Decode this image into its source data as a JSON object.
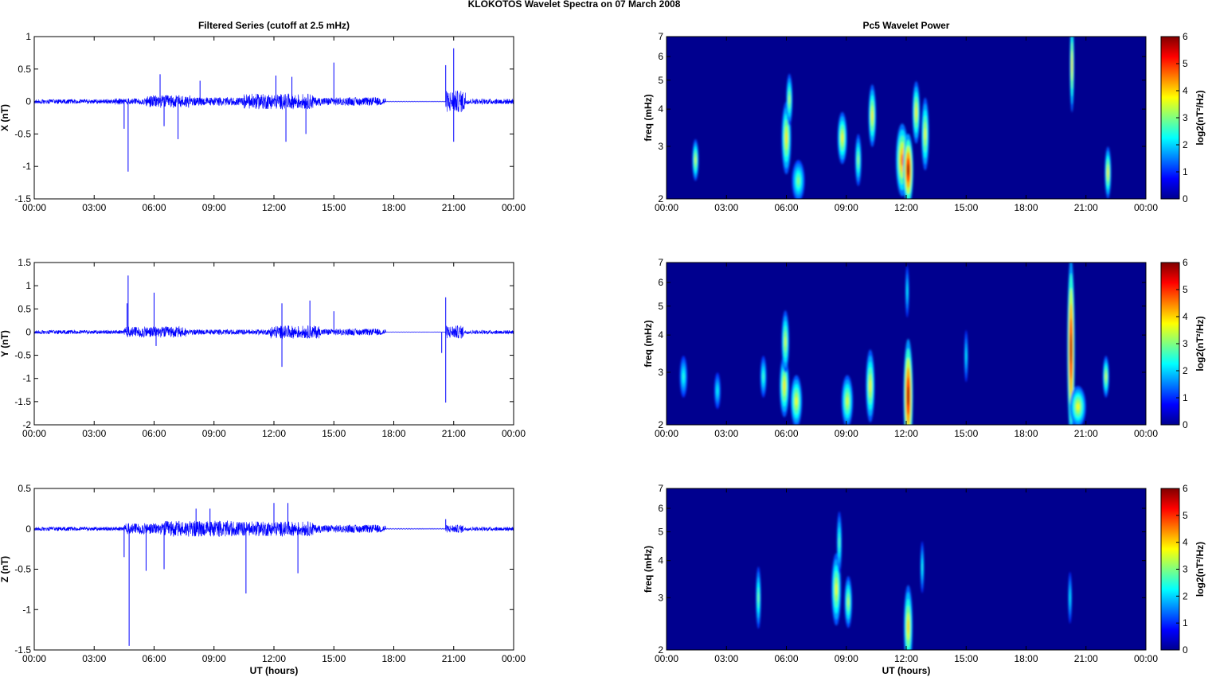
{
  "figure": {
    "suptitle": "KLOKOTOS Wavelet Spectra on 07 March     2008"
  },
  "colors": {
    "trace": "#0000ff",
    "axes": "#000000",
    "spectrum_background": "#00008f"
  },
  "chart_data": [
    {
      "type": "line",
      "panel": "x-series",
      "title": "Filtered Series (cutoff at 2.5 mHz)",
      "xlabel": "",
      "ylabel": "X (nT)",
      "xlim": [
        "00:00",
        "24:00"
      ],
      "ylim": [
        -1.5,
        1
      ],
      "x_ticks": [
        "00:00",
        "03:00",
        "06:00",
        "09:00",
        "12:00",
        "15:00",
        "18:00",
        "21:00",
        "00:00"
      ],
      "y_ticks": [
        "1",
        "0.5",
        "0",
        "-0.5",
        "-1",
        "-1.5"
      ],
      "gap_hours": [
        17.6,
        20.6
      ],
      "peaks": [
        {
          "t": 4.7,
          "v": -1.08
        },
        {
          "t": 4.5,
          "v": -0.42
        },
        {
          "t": 6.3,
          "v": 0.42
        },
        {
          "t": 6.5,
          "v": -0.38
        },
        {
          "t": 7.2,
          "v": -0.58
        },
        {
          "t": 8.3,
          "v": 0.32
        },
        {
          "t": 12.1,
          "v": 0.4
        },
        {
          "t": 12.6,
          "v": -0.62
        },
        {
          "t": 12.9,
          "v": 0.38
        },
        {
          "t": 13.6,
          "v": -0.5
        },
        {
          "t": 15.0,
          "v": 0.6
        },
        {
          "t": 20.6,
          "v": 0.56
        },
        {
          "t": 21.0,
          "v": 0.82
        },
        {
          "t": 21.0,
          "v": -0.62
        }
      ],
      "noise_segments": [
        {
          "from": 0.0,
          "to": 4.0,
          "amp": 0.05
        },
        {
          "from": 4.0,
          "to": 5.6,
          "amp": 0.07
        },
        {
          "from": 5.6,
          "to": 7.8,
          "amp": 0.14
        },
        {
          "from": 7.8,
          "to": 10.5,
          "amp": 0.09
        },
        {
          "from": 10.5,
          "to": 14.0,
          "amp": 0.17
        },
        {
          "from": 14.0,
          "to": 17.6,
          "amp": 0.09
        },
        {
          "from": 20.6,
          "to": 21.6,
          "amp": 0.24
        },
        {
          "from": 21.6,
          "to": 24.0,
          "amp": 0.06
        }
      ]
    },
    {
      "type": "line",
      "panel": "y-series",
      "title": "",
      "xlabel": "",
      "ylabel": "Y (nT)",
      "xlim": [
        "00:00",
        "24:00"
      ],
      "ylim": [
        -2,
        1.5
      ],
      "x_ticks": [
        "00:00",
        "03:00",
        "06:00",
        "09:00",
        "12:00",
        "15:00",
        "18:00",
        "21:00",
        "00:00"
      ],
      "y_ticks": [
        "1.5",
        "1",
        "0.5",
        "0",
        "-0.5",
        "-1",
        "-1.5",
        "-2"
      ],
      "gap_hours": [
        17.6,
        20.6
      ],
      "peaks": [
        {
          "t": 4.7,
          "v": 1.22
        },
        {
          "t": 4.65,
          "v": 0.62
        },
        {
          "t": 6.0,
          "v": 0.85
        },
        {
          "t": 6.1,
          "v": -0.3
        },
        {
          "t": 12.4,
          "v": 0.62
        },
        {
          "t": 12.4,
          "v": -0.75
        },
        {
          "t": 13.8,
          "v": 0.68
        },
        {
          "t": 15.0,
          "v": 0.45
        },
        {
          "t": 20.6,
          "v": 0.75
        },
        {
          "t": 20.6,
          "v": -1.52
        },
        {
          "t": 20.4,
          "v": -0.45
        }
      ],
      "noise_segments": [
        {
          "from": 0.0,
          "to": 4.5,
          "amp": 0.06
        },
        {
          "from": 4.5,
          "to": 7.6,
          "amp": 0.17
        },
        {
          "from": 7.6,
          "to": 11.8,
          "amp": 0.08
        },
        {
          "from": 11.8,
          "to": 14.3,
          "amp": 0.2
        },
        {
          "from": 14.3,
          "to": 17.6,
          "amp": 0.1
        },
        {
          "from": 20.6,
          "to": 21.5,
          "amp": 0.2
        },
        {
          "from": 21.5,
          "to": 24.0,
          "amp": 0.06
        }
      ]
    },
    {
      "type": "line",
      "panel": "z-series",
      "title": "",
      "xlabel": "UT (hours)",
      "ylabel": "Z (nT)",
      "xlim": [
        "00:00",
        "24:00"
      ],
      "ylim": [
        -1.5,
        0.5
      ],
      "x_ticks": [
        "00:00",
        "03:00",
        "06:00",
        "09:00",
        "12:00",
        "15:00",
        "18:00",
        "21:00",
        "00:00"
      ],
      "y_ticks": [
        "0.5",
        "0",
        "-0.5",
        "-1",
        "-1.5"
      ],
      "gap_hours": [
        17.6,
        20.6
      ],
      "peaks": [
        {
          "t": 4.75,
          "v": -1.45
        },
        {
          "t": 4.5,
          "v": -0.35
        },
        {
          "t": 5.6,
          "v": -0.52
        },
        {
          "t": 6.5,
          "v": -0.5
        },
        {
          "t": 8.1,
          "v": 0.25
        },
        {
          "t": 8.8,
          "v": 0.25
        },
        {
          "t": 10.6,
          "v": -0.8
        },
        {
          "t": 12.0,
          "v": 0.32
        },
        {
          "t": 12.7,
          "v": 0.32
        },
        {
          "t": 13.2,
          "v": -0.55
        },
        {
          "t": 20.6,
          "v": 0.12
        }
      ],
      "noise_segments": [
        {
          "from": 0.0,
          "to": 4.5,
          "amp": 0.035
        },
        {
          "from": 4.5,
          "to": 6.5,
          "amp": 0.1
        },
        {
          "from": 6.5,
          "to": 10.0,
          "amp": 0.14
        },
        {
          "from": 10.0,
          "to": 14.0,
          "amp": 0.13
        },
        {
          "from": 14.0,
          "to": 17.6,
          "amp": 0.07
        },
        {
          "from": 20.6,
          "to": 21.5,
          "amp": 0.07
        },
        {
          "from": 21.5,
          "to": 24.0,
          "amp": 0.035
        }
      ]
    },
    {
      "type": "heatmap",
      "panel": "x-spectrum",
      "title": "Pc5 Wavelet Power",
      "xlabel": "",
      "ylabel": "freq (mHz)",
      "xlim": [
        "00:00",
        "24:00"
      ],
      "ylim": [
        2,
        7
      ],
      "y_scale": "log",
      "x_ticks": [
        "00:00",
        "03:00",
        "06:00",
        "09:00",
        "12:00",
        "15:00",
        "18:00",
        "21:00",
        "00:00"
      ],
      "y_ticks": [
        "7",
        "6",
        "5",
        "4",
        "3",
        "2"
      ],
      "colorbar": {
        "label": "log2(nT²/Hz)",
        "range": [
          0,
          6
        ],
        "ticks": [
          "6",
          "5",
          "4",
          "3",
          "2",
          "1",
          "0"
        ]
      },
      "blobs": [
        {
          "t": 1.45,
          "f": 2.7,
          "dt": 0.1,
          "ds": 0.08,
          "p": 3.2
        },
        {
          "t": 6.0,
          "f": 3.2,
          "dt": 0.15,
          "ds": 0.14,
          "p": 3.6
        },
        {
          "t": 6.15,
          "f": 4.3,
          "dt": 0.1,
          "ds": 0.1,
          "p": 3.0
        },
        {
          "t": 6.6,
          "f": 2.3,
          "dt": 0.2,
          "ds": 0.08,
          "p": 2.6
        },
        {
          "t": 8.8,
          "f": 3.2,
          "dt": 0.15,
          "ds": 0.1,
          "p": 3.5
        },
        {
          "t": 9.6,
          "f": 2.7,
          "dt": 0.1,
          "ds": 0.1,
          "p": 2.8
        },
        {
          "t": 10.3,
          "f": 3.8,
          "dt": 0.12,
          "ds": 0.12,
          "p": 3.6
        },
        {
          "t": 11.8,
          "f": 2.7,
          "dt": 0.2,
          "ds": 0.14,
          "p": 4.5
        },
        {
          "t": 12.1,
          "f": 2.5,
          "dt": 0.16,
          "ds": 0.14,
          "p": 6.0
        },
        {
          "t": 12.5,
          "f": 3.9,
          "dt": 0.12,
          "ds": 0.12,
          "p": 3.6
        },
        {
          "t": 12.95,
          "f": 3.3,
          "dt": 0.12,
          "ds": 0.14,
          "p": 3.4
        },
        {
          "t": 20.3,
          "f": 5.6,
          "dt": 0.07,
          "ds": 0.18,
          "p": 3.8
        },
        {
          "t": 22.1,
          "f": 2.45,
          "dt": 0.1,
          "ds": 0.1,
          "p": 3.6
        }
      ]
    },
    {
      "type": "heatmap",
      "panel": "y-spectrum",
      "title": "",
      "xlabel": "",
      "ylabel": "freq (mHz)",
      "xlim": [
        "00:00",
        "24:00"
      ],
      "ylim": [
        2,
        7
      ],
      "y_scale": "log",
      "x_ticks": [
        "00:00",
        "03:00",
        "06:00",
        "09:00",
        "12:00",
        "15:00",
        "18:00",
        "21:00",
        "00:00"
      ],
      "y_ticks": [
        "7",
        "6",
        "5",
        "4",
        "3",
        "2"
      ],
      "colorbar": {
        "label": "log2(nT²/Hz)",
        "range": [
          0,
          6
        ],
        "ticks": [
          "6",
          "5",
          "4",
          "3",
          "2",
          "1",
          "0"
        ]
      },
      "blobs": [
        {
          "t": 0.85,
          "f": 2.9,
          "dt": 0.12,
          "ds": 0.08,
          "p": 2.0
        },
        {
          "t": 2.55,
          "f": 2.6,
          "dt": 0.1,
          "ds": 0.07,
          "p": 1.8
        },
        {
          "t": 4.85,
          "f": 2.9,
          "dt": 0.1,
          "ds": 0.08,
          "p": 2.2
        },
        {
          "t": 5.9,
          "f": 2.7,
          "dt": 0.15,
          "ds": 0.12,
          "p": 3.6
        },
        {
          "t": 5.95,
          "f": 3.8,
          "dt": 0.12,
          "ds": 0.12,
          "p": 3.2
        },
        {
          "t": 6.5,
          "f": 2.4,
          "dt": 0.18,
          "ds": 0.1,
          "p": 3.4
        },
        {
          "t": 9.05,
          "f": 2.4,
          "dt": 0.18,
          "ds": 0.1,
          "p": 3.2
        },
        {
          "t": 10.2,
          "f": 2.7,
          "dt": 0.14,
          "ds": 0.14,
          "p": 3.5
        },
        {
          "t": 12.1,
          "f": 2.5,
          "dt": 0.15,
          "ds": 0.22,
          "p": 6.1
        },
        {
          "t": 12.05,
          "f": 5.6,
          "dt": 0.06,
          "ds": 0.1,
          "p": 1.8
        },
        {
          "t": 15.0,
          "f": 3.4,
          "dt": 0.06,
          "ds": 0.1,
          "p": 1.8
        },
        {
          "t": 20.25,
          "f": 3.6,
          "dt": 0.12,
          "ds": 0.35,
          "p": 6.0
        },
        {
          "t": 20.6,
          "f": 2.3,
          "dt": 0.25,
          "ds": 0.08,
          "p": 3.4
        },
        {
          "t": 22.0,
          "f": 2.9,
          "dt": 0.1,
          "ds": 0.08,
          "p": 3.2
        }
      ]
    },
    {
      "type": "heatmap",
      "panel": "z-spectrum",
      "title": "",
      "xlabel": "UT (hours)",
      "ylabel": "freq (mHz)",
      "xlim": [
        "00:00",
        "24:00"
      ],
      "ylim": [
        2,
        7
      ],
      "y_scale": "log",
      "x_ticks": [
        "00:00",
        "03:00",
        "06:00",
        "09:00",
        "12:00",
        "15:00",
        "18:00",
        "21:00",
        "00:00"
      ],
      "y_ticks": [
        "7",
        "6",
        "5",
        "4",
        "3",
        "2"
      ],
      "colorbar": {
        "label": "log2(nT²/Hz)",
        "range": [
          0,
          6
        ],
        "ticks": [
          "6",
          "5",
          "4",
          "3",
          "2",
          "1",
          "0"
        ]
      },
      "blobs": [
        {
          "t": 4.6,
          "f": 3.0,
          "dt": 0.08,
          "ds": 0.12,
          "p": 2.6
        },
        {
          "t": 8.5,
          "f": 3.2,
          "dt": 0.15,
          "ds": 0.14,
          "p": 3.4
        },
        {
          "t": 8.65,
          "f": 4.6,
          "dt": 0.08,
          "ds": 0.12,
          "p": 2.4
        },
        {
          "t": 9.1,
          "f": 2.9,
          "dt": 0.12,
          "ds": 0.1,
          "p": 3.0
        },
        {
          "t": 12.1,
          "f": 2.4,
          "dt": 0.14,
          "ds": 0.16,
          "p": 3.8
        },
        {
          "t": 12.8,
          "f": 3.8,
          "dt": 0.06,
          "ds": 0.1,
          "p": 2.0
        },
        {
          "t": 20.2,
          "f": 3.0,
          "dt": 0.06,
          "ds": 0.1,
          "p": 1.8
        }
      ]
    }
  ]
}
